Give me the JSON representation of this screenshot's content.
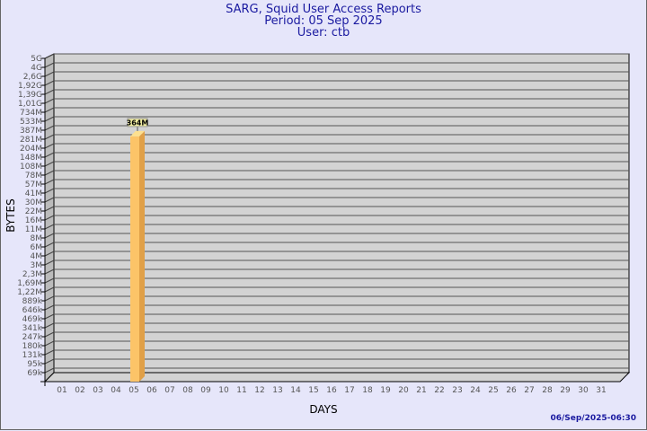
{
  "header": {
    "title": "SARG, Squid User Access Reports",
    "period": "Period: 05 Sep 2025",
    "user": "User: ctb"
  },
  "footer": {
    "timestamp": "06/Sep/2025-06:30"
  },
  "colors": {
    "background": "#e6e6fa",
    "plot": "#d3d3d3",
    "bar_front": "#fcc468",
    "bar_side": "#e0a048",
    "label_box": "#f0eca0",
    "title": "#1a1aa0"
  },
  "chart_data": {
    "type": "bar",
    "xlabel": "DAYS",
    "ylabel": "BYTES",
    "yscale": "log",
    "grid": true,
    "yticks": [
      "5G",
      "4G",
      "2,6G",
      "1,92G",
      "1,39G",
      "1,01G",
      "734M",
      "533M",
      "387M",
      "281M",
      "204M",
      "148M",
      "108M",
      "78M",
      "57M",
      "41M",
      "30M",
      "22M",
      "16M",
      "11M",
      "8M",
      "6M",
      "4M",
      "3M",
      "2,3M",
      "1,69M",
      "1,22M",
      "889k",
      "646k",
      "469k",
      "341k",
      "247k",
      "180k",
      "131k",
      "95k",
      "69k"
    ],
    "categories": [
      "01",
      "02",
      "03",
      "04",
      "05",
      "06",
      "07",
      "08",
      "09",
      "10",
      "11",
      "12",
      "13",
      "14",
      "15",
      "16",
      "17",
      "18",
      "19",
      "20",
      "21",
      "22",
      "23",
      "24",
      "25",
      "26",
      "27",
      "28",
      "29",
      "30",
      "31"
    ],
    "series": [
      {
        "values": [
          null,
          null,
          null,
          null,
          364000000,
          null,
          null,
          null,
          null,
          null,
          null,
          null,
          null,
          null,
          null,
          null,
          null,
          null,
          null,
          null,
          null,
          null,
          null,
          null,
          null,
          null,
          null,
          null,
          null,
          null,
          null
        ],
        "labels": {
          "4": "364M"
        }
      }
    ]
  }
}
